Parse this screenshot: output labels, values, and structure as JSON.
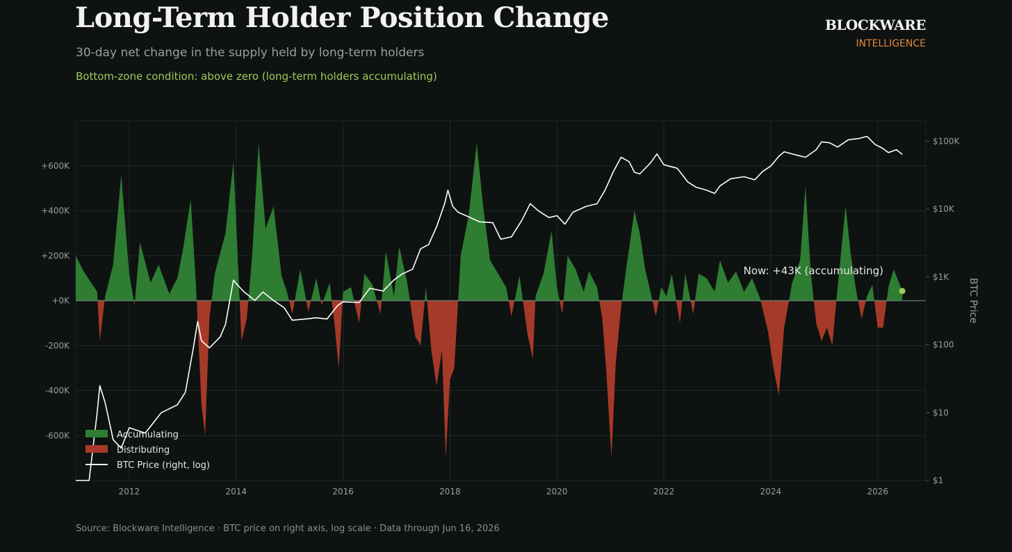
{
  "header": {
    "title": "Long-Term Holder Position Change",
    "subtitle": "30-day net change in the supply held by long-term holders",
    "condition": "Bottom-zone condition:  above zero  (long-term holders accumulating)"
  },
  "brand": {
    "name": "BLOCKWARE",
    "sub": "INTELLIGENCE"
  },
  "footer": "Source: Blockware Intelligence  ·  BTC price on right axis, log scale  ·  Data through Jun 16, 2026",
  "colors": {
    "accumulating": "#2e7d32",
    "distributing": "#a63a28",
    "price": "#ffffff",
    "now_dot": "#9ccb5a",
    "zero_line": "#7a9a8a",
    "grid": "#1f2a26"
  },
  "chart_data": {
    "type": "area",
    "x_range": [
      2011.0,
      2026.9
    ],
    "y_left": {
      "range": [
        -800000,
        800000
      ],
      "ticks": [
        -600000,
        -400000,
        -200000,
        0,
        200000,
        400000,
        600000
      ],
      "tick_labels": [
        "-600K",
        "-400K",
        "-200K",
        "+0K",
        "+200K",
        "+400K",
        "+600K"
      ]
    },
    "y_right": {
      "label": "BTC Price",
      "scale": "log",
      "range": [
        1,
        200000
      ],
      "ticks": [
        1,
        10,
        100,
        1000,
        10000,
        100000
      ],
      "tick_labels": [
        "$1",
        "$10",
        "$100",
        "$1K",
        "$10K",
        "$100K"
      ]
    },
    "x_ticks": [
      "2012",
      "2014",
      "2016",
      "2018",
      "2020",
      "2022",
      "2024",
      "2026"
    ],
    "legend": {
      "placement": "bottom-left",
      "items": [
        {
          "label": "Accumulating",
          "kind": "patch"
        },
        {
          "label": "Distributing",
          "kind": "patch"
        },
        {
          "label": "BTC Price (right, log)",
          "kind": "line"
        }
      ]
    },
    "annotation": {
      "text": "Now: +43K (accumulating)",
      "x": 2026.46,
      "y": 43000
    },
    "lth_change_series": {
      "name": "LTH 30-day net change",
      "points": [
        [
          2011.0,
          200000
        ],
        [
          2011.15,
          130000
        ],
        [
          2011.4,
          40000
        ],
        [
          2011.45,
          -180000
        ],
        [
          2011.55,
          20000
        ],
        [
          2011.7,
          160000
        ],
        [
          2011.85,
          560000
        ],
        [
          2012.0,
          120000
        ],
        [
          2012.1,
          -20000
        ],
        [
          2012.2,
          260000
        ],
        [
          2012.4,
          80000
        ],
        [
          2012.55,
          160000
        ],
        [
          2012.75,
          30000
        ],
        [
          2012.9,
          100000
        ],
        [
          2013.0,
          220000
        ],
        [
          2013.15,
          450000
        ],
        [
          2013.25,
          60000
        ],
        [
          2013.35,
          -460000
        ],
        [
          2013.42,
          -600000
        ],
        [
          2013.5,
          -80000
        ],
        [
          2013.6,
          120000
        ],
        [
          2013.8,
          300000
        ],
        [
          2013.95,
          620000
        ],
        [
          2014.05,
          80000
        ],
        [
          2014.1,
          -180000
        ],
        [
          2014.2,
          -80000
        ],
        [
          2014.3,
          200000
        ],
        [
          2014.42,
          700000
        ],
        [
          2014.55,
          320000
        ],
        [
          2014.7,
          420000
        ],
        [
          2014.85,
          110000
        ],
        [
          2014.95,
          40000
        ],
        [
          2015.05,
          -60000
        ],
        [
          2015.2,
          140000
        ],
        [
          2015.35,
          -50000
        ],
        [
          2015.5,
          100000
        ],
        [
          2015.6,
          -20000
        ],
        [
          2015.75,
          80000
        ],
        [
          2015.85,
          -130000
        ],
        [
          2015.92,
          -300000
        ],
        [
          2016.0,
          40000
        ],
        [
          2016.15,
          60000
        ],
        [
          2016.3,
          -100000
        ],
        [
          2016.4,
          120000
        ],
        [
          2016.55,
          70000
        ],
        [
          2016.7,
          -60000
        ],
        [
          2016.8,
          220000
        ],
        [
          2016.95,
          20000
        ],
        [
          2017.05,
          240000
        ],
        [
          2017.2,
          80000
        ],
        [
          2017.35,
          -160000
        ],
        [
          2017.45,
          -200000
        ],
        [
          2017.55,
          60000
        ],
        [
          2017.65,
          -220000
        ],
        [
          2017.75,
          -380000
        ],
        [
          2017.85,
          -220000
        ],
        [
          2017.92,
          -700000
        ],
        [
          2018.0,
          -350000
        ],
        [
          2018.08,
          -300000
        ],
        [
          2018.2,
          200000
        ],
        [
          2018.35,
          380000
        ],
        [
          2018.5,
          700000
        ],
        [
          2018.62,
          420000
        ],
        [
          2018.75,
          180000
        ],
        [
          2018.9,
          120000
        ],
        [
          2019.05,
          60000
        ],
        [
          2019.15,
          -70000
        ],
        [
          2019.3,
          110000
        ],
        [
          2019.45,
          -150000
        ],
        [
          2019.55,
          -260000
        ],
        [
          2019.6,
          20000
        ],
        [
          2019.75,
          120000
        ],
        [
          2019.9,
          310000
        ],
        [
          2020.0,
          60000
        ],
        [
          2020.1,
          -60000
        ],
        [
          2020.2,
          200000
        ],
        [
          2020.35,
          140000
        ],
        [
          2020.5,
          40000
        ],
        [
          2020.6,
          130000
        ],
        [
          2020.75,
          60000
        ],
        [
          2020.85,
          -80000
        ],
        [
          2020.92,
          -300000
        ],
        [
          2021.02,
          -700000
        ],
        [
          2021.1,
          -280000
        ],
        [
          2021.2,
          -30000
        ],
        [
          2021.3,
          150000
        ],
        [
          2021.45,
          400000
        ],
        [
          2021.55,
          300000
        ],
        [
          2021.65,
          140000
        ],
        [
          2021.75,
          40000
        ],
        [
          2021.85,
          -70000
        ],
        [
          2021.95,
          60000
        ],
        [
          2022.05,
          20000
        ],
        [
          2022.15,
          120000
        ],
        [
          2022.3,
          -100000
        ],
        [
          2022.4,
          120000
        ],
        [
          2022.55,
          -60000
        ],
        [
          2022.65,
          120000
        ],
        [
          2022.8,
          100000
        ],
        [
          2022.95,
          40000
        ],
        [
          2023.05,
          180000
        ],
        [
          2023.2,
          80000
        ],
        [
          2023.35,
          130000
        ],
        [
          2023.5,
          40000
        ],
        [
          2023.65,
          100000
        ],
        [
          2023.8,
          10000
        ],
        [
          2023.95,
          -140000
        ],
        [
          2024.05,
          -300000
        ],
        [
          2024.15,
          -420000
        ],
        [
          2024.25,
          -120000
        ],
        [
          2024.4,
          80000
        ],
        [
          2024.55,
          180000
        ],
        [
          2024.65,
          510000
        ],
        [
          2024.75,
          120000
        ],
        [
          2024.85,
          -100000
        ],
        [
          2024.95,
          -180000
        ],
        [
          2025.05,
          -120000
        ],
        [
          2025.15,
          -200000
        ],
        [
          2025.25,
          60000
        ],
        [
          2025.4,
          420000
        ],
        [
          2025.5,
          200000
        ],
        [
          2025.6,
          40000
        ],
        [
          2025.7,
          -80000
        ],
        [
          2025.8,
          20000
        ],
        [
          2025.9,
          70000
        ],
        [
          2026.0,
          -120000
        ],
        [
          2026.1,
          -120000
        ],
        [
          2026.2,
          60000
        ],
        [
          2026.3,
          140000
        ],
        [
          2026.46,
          43000
        ]
      ]
    },
    "btc_price_series": {
      "name": "BTC Price (right, log)",
      "points": [
        [
          2011.0,
          0.4
        ],
        [
          2011.25,
          1
        ],
        [
          2011.4,
          10
        ],
        [
          2011.45,
          25
        ],
        [
          2011.55,
          14
        ],
        [
          2011.7,
          4
        ],
        [
          2011.85,
          3
        ],
        [
          2012.0,
          6
        ],
        [
          2012.3,
          5
        ],
        [
          2012.6,
          10
        ],
        [
          2012.9,
          13
        ],
        [
          2013.05,
          20
        ],
        [
          2013.2,
          90
        ],
        [
          2013.28,
          220
        ],
        [
          2013.35,
          115
        ],
        [
          2013.5,
          90
        ],
        [
          2013.7,
          130
        ],
        [
          2013.8,
          200
        ],
        [
          2013.95,
          900
        ],
        [
          2014.0,
          800
        ],
        [
          2014.15,
          600
        ],
        [
          2014.35,
          450
        ],
        [
          2014.5,
          600
        ],
        [
          2014.7,
          450
        ],
        [
          2014.9,
          350
        ],
        [
          2015.05,
          230
        ],
        [
          2015.3,
          240
        ],
        [
          2015.5,
          250
        ],
        [
          2015.7,
          240
        ],
        [
          2015.9,
          380
        ],
        [
          2016.0,
          430
        ],
        [
          2016.3,
          420
        ],
        [
          2016.5,
          680
        ],
        [
          2016.75,
          620
        ],
        [
          2016.95,
          900
        ],
        [
          2017.1,
          1100
        ],
        [
          2017.3,
          1300
        ],
        [
          2017.45,
          2600
        ],
        [
          2017.6,
          3000
        ],
        [
          2017.75,
          5500
        ],
        [
          2017.9,
          12000
        ],
        [
          2017.96,
          19000
        ],
        [
          2018.05,
          11000
        ],
        [
          2018.15,
          9000
        ],
        [
          2018.3,
          8000
        ],
        [
          2018.55,
          6500
        ],
        [
          2018.8,
          6300
        ],
        [
          2018.95,
          3600
        ],
        [
          2019.15,
          3900
        ],
        [
          2019.35,
          7000
        ],
        [
          2019.5,
          12000
        ],
        [
          2019.65,
          9500
        ],
        [
          2019.85,
          7500
        ],
        [
          2020.0,
          8000
        ],
        [
          2020.15,
          6000
        ],
        [
          2020.3,
          9000
        ],
        [
          2020.55,
          11000
        ],
        [
          2020.75,
          12000
        ],
        [
          2020.9,
          19000
        ],
        [
          2021.05,
          35000
        ],
        [
          2021.2,
          58000
        ],
        [
          2021.35,
          50000
        ],
        [
          2021.45,
          35000
        ],
        [
          2021.55,
          33000
        ],
        [
          2021.75,
          48000
        ],
        [
          2021.87,
          65000
        ],
        [
          2022.0,
          45000
        ],
        [
          2022.25,
          40000
        ],
        [
          2022.45,
          25000
        ],
        [
          2022.6,
          21000
        ],
        [
          2022.8,
          19000
        ],
        [
          2022.95,
          17000
        ],
        [
          2023.05,
          22000
        ],
        [
          2023.25,
          28000
        ],
        [
          2023.5,
          30000
        ],
        [
          2023.7,
          27000
        ],
        [
          2023.85,
          36000
        ],
        [
          2024.0,
          43000
        ],
        [
          2024.15,
          60000
        ],
        [
          2024.25,
          70000
        ],
        [
          2024.5,
          62000
        ],
        [
          2024.65,
          58000
        ],
        [
          2024.85,
          75000
        ],
        [
          2024.95,
          98000
        ],
        [
          2025.1,
          95000
        ],
        [
          2025.25,
          82000
        ],
        [
          2025.45,
          105000
        ],
        [
          2025.65,
          110000
        ],
        [
          2025.8,
          118000
        ],
        [
          2025.95,
          90000
        ],
        [
          2026.1,
          78000
        ],
        [
          2026.2,
          68000
        ],
        [
          2026.35,
          75000
        ],
        [
          2026.46,
          64000
        ]
      ]
    }
  }
}
